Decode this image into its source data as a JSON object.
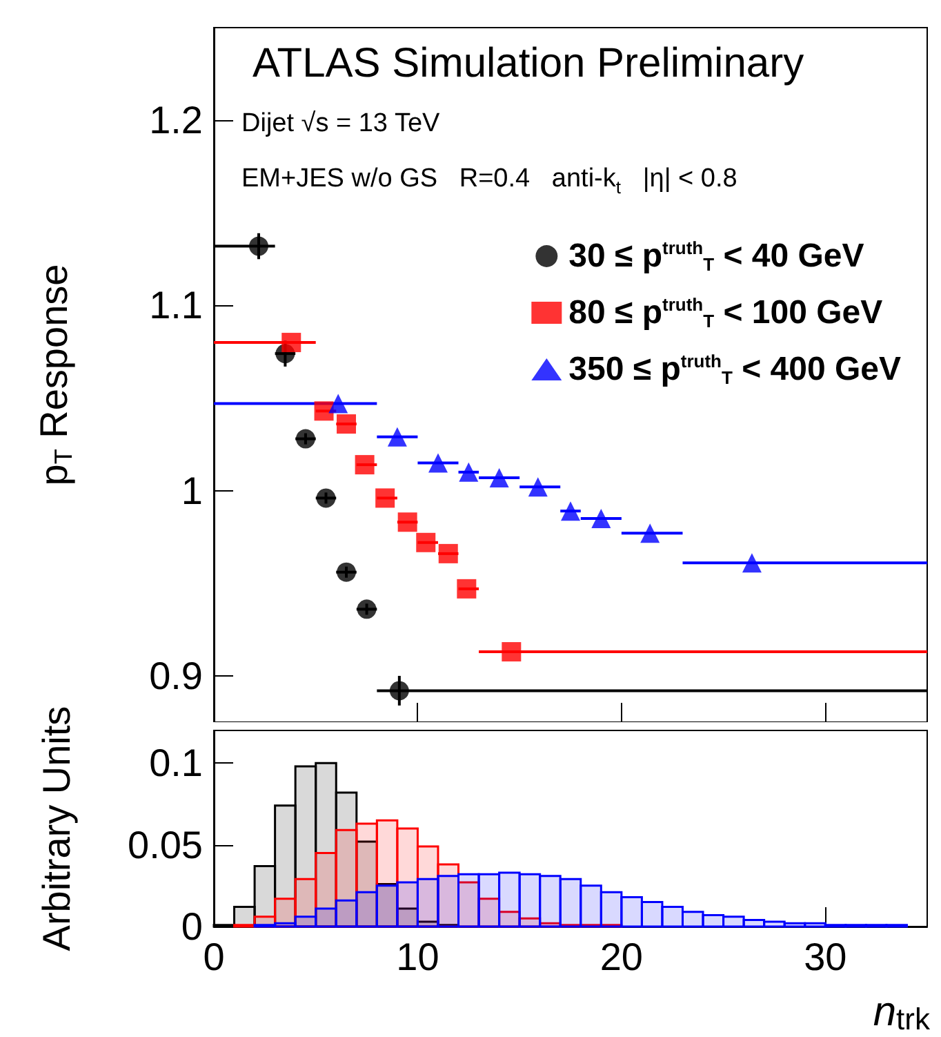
{
  "chart_data": [
    {
      "type": "scatter",
      "title": "ATLAS Simulation Preliminary",
      "annotations": [
        "Dijet √s = 13 TeV",
        "EM+JES w/o GS   R=0.4   anti-k$_{t}$   |η| < 0.8"
      ],
      "ylabel": "p$_{T}$ Response",
      "xlim": [
        0,
        35
      ],
      "xticks": [
        0,
        10,
        20,
        30
      ],
      "ylim": [
        0.875,
        1.25
      ],
      "yticks": [
        0.9,
        1,
        1.1,
        1.2
      ],
      "tick_labels": "y",
      "legend": "top right",
      "series": [
        {
          "name": "30 ≤ p$^{truth}$$_{T}$ < 40 GeV",
          "color": "#000000",
          "marker": "circle",
          "x": [
            2.2,
            3.5,
            4.5,
            5.5,
            6.5,
            7.5,
            9.1
          ],
          "values": [
            1.132,
            1.074,
            1.028,
            0.996,
            0.956,
            0.936,
            0.892
          ],
          "xerrors": [
            [
              0,
              3
            ],
            [
              3,
              4
            ],
            [
              4,
              5
            ],
            [
              5,
              6
            ],
            [
              6,
              7
            ],
            [
              7,
              8
            ],
            [
              8,
              35
            ]
          ],
          "errors": [
            0.007,
            0.007,
            0.003,
            0.003,
            0.003,
            0.003,
            0.008
          ]
        },
        {
          "name": "80 ≤ p$^{truth}$$_{T}$ < 100 GeV",
          "color": "#ff0000",
          "marker": "square",
          "x": [
            3.8,
            5.4,
            6.5,
            7.4,
            8.4,
            9.5,
            10.4,
            11.5,
            12.4,
            14.6
          ],
          "values": [
            1.08,
            1.043,
            1.036,
            1.014,
            0.996,
            0.983,
            0.972,
            0.966,
            0.947,
            0.913
          ],
          "xerrors": [
            [
              0,
              5
            ],
            [
              5,
              6
            ],
            [
              6,
              7
            ],
            [
              7,
              8
            ],
            [
              8,
              9
            ],
            [
              9,
              10
            ],
            [
              10,
              11
            ],
            [
              11,
              12
            ],
            [
              12,
              13
            ],
            [
              13,
              35
            ]
          ]
        },
        {
          "name": "350 ≤ p$^{truth}$$_{T}$ < 400 GeV",
          "color": "#0000ff",
          "marker": "triangle",
          "x": [
            6.1,
            9.0,
            11.0,
            12.5,
            14.0,
            15.9,
            17.5,
            19.0,
            21.4,
            26.4
          ],
          "values": [
            1.047,
            1.029,
            1.015,
            1.01,
            1.007,
            1.002,
            0.989,
            0.985,
            0.977,
            0.961
          ],
          "xerrors": [
            [
              0,
              8
            ],
            [
              8,
              10
            ],
            [
              10,
              12
            ],
            [
              12,
              13
            ],
            [
              13,
              15
            ],
            [
              15,
              17
            ],
            [
              17,
              18
            ],
            [
              18,
              20
            ],
            [
              20,
              23
            ],
            [
              23,
              35
            ]
          ]
        }
      ]
    },
    {
      "type": "histogram",
      "ylabel": "Arbitrary Units",
      "xlabel": "n$_{trk}$",
      "bins": [
        0,
        1,
        2,
        3,
        4,
        5,
        6,
        7,
        8,
        9,
        10,
        11,
        12,
        13,
        14,
        15,
        16,
        17,
        18,
        19,
        20,
        21,
        22,
        23,
        24,
        25,
        26,
        27,
        28,
        29,
        30,
        31,
        32,
        33,
        34,
        35
      ],
      "xlim": [
        0,
        35
      ],
      "xticks": [
        0,
        10,
        20,
        30
      ],
      "ylim": [
        0,
        0.12
      ],
      "yticks": [
        0,
        0.05,
        0.1
      ],
      "series": [
        {
          "color": "#000000",
          "values": [
            0.001,
            0.012,
            0.037,
            0.074,
            0.098,
            0.1,
            0.082,
            0.052,
            0.026,
            0.011,
            0.003,
            0.001,
            0,
            0,
            0,
            0,
            0,
            0,
            0,
            0,
            0,
            0,
            0,
            0,
            0,
            0,
            0,
            0,
            0,
            0,
            0,
            0,
            0,
            0,
            0
          ]
        },
        {
          "color": "#ff0000",
          "values": [
            0,
            0.001,
            0.006,
            0.017,
            0.029,
            0.045,
            0.059,
            0.063,
            0.065,
            0.06,
            0.049,
            0.038,
            0.027,
            0.017,
            0.009,
            0.005,
            0.002,
            0.001,
            0.001,
            0.001,
            0,
            0,
            0,
            0,
            0,
            0,
            0,
            0,
            0,
            0,
            0,
            0,
            0,
            0,
            0
          ]
        },
        {
          "color": "#0000ff",
          "values": [
            0,
            0,
            0.001,
            0.002,
            0.006,
            0.011,
            0.016,
            0.021,
            0.025,
            0.027,
            0.029,
            0.031,
            0.032,
            0.032,
            0.033,
            0.032,
            0.031,
            0.029,
            0.025,
            0.021,
            0.018,
            0.015,
            0.012,
            0.009,
            0.007,
            0.006,
            0.004,
            0.003,
            0.002,
            0.002,
            0.001,
            0.001,
            0.001,
            0.001,
            0
          ]
        }
      ]
    }
  ]
}
